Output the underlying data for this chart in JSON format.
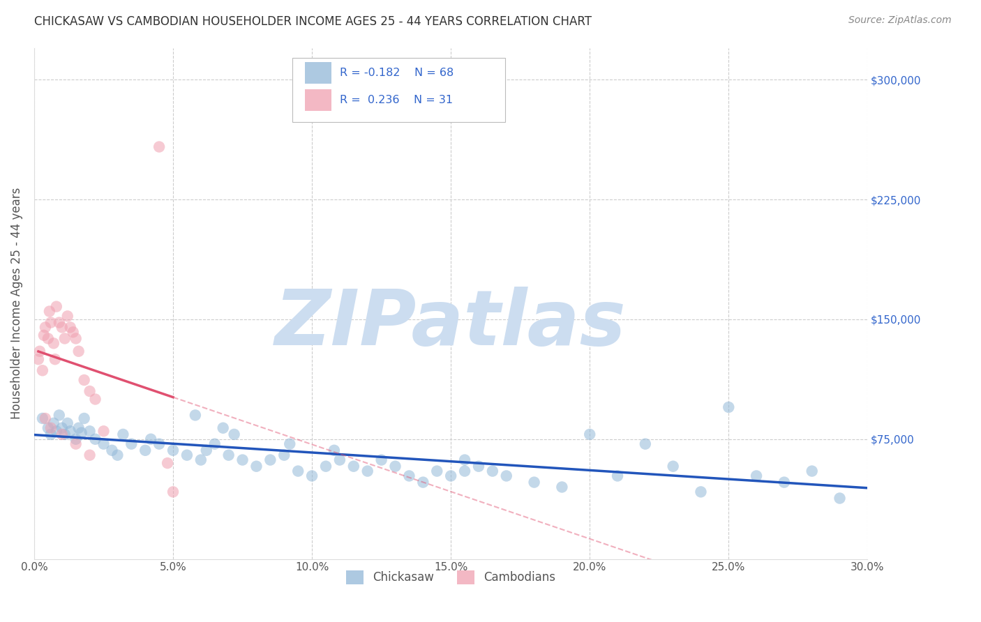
{
  "title": "CHICKASAW VS CAMBODIAN HOUSEHOLDER INCOME AGES 25 - 44 YEARS CORRELATION CHART",
  "source": "Source: ZipAtlas.com",
  "xlabel_vals": [
    0.0,
    5.0,
    10.0,
    15.0,
    20.0,
    25.0,
    30.0
  ],
  "ylabel_vals": [
    75000,
    150000,
    225000,
    300000
  ],
  "ylabel_labels": [
    "$75,000",
    "$150,000",
    "$225,000",
    "$300,000"
  ],
  "xlim": [
    0.0,
    30.0
  ],
  "ylim": [
    0,
    320000
  ],
  "ylabel_label": "Householder Income Ages 25 - 44 years",
  "legend_label1": "Chickasaw",
  "legend_label2": "Cambodians",
  "legend_R1": "-0.182",
  "legend_N1": "68",
  "legend_R2": "0.236",
  "legend_N2": "31",
  "blue_color": "#92b8d8",
  "pink_color": "#f0a0b0",
  "blue_line_color": "#2255bb",
  "pink_line_color": "#e05070",
  "legend_text_color": "#3366cc",
  "watermark": "ZIPatlas",
  "watermark_color": "#ccddf0",
  "blue_x": [
    0.3,
    0.5,
    0.6,
    0.7,
    0.8,
    0.9,
    1.0,
    1.1,
    1.2,
    1.3,
    1.5,
    1.6,
    1.7,
    1.8,
    2.0,
    2.2,
    2.5,
    2.8,
    3.0,
    3.2,
    3.5,
    4.0,
    4.2,
    4.5,
    5.0,
    5.5,
    6.0,
    6.2,
    6.5,
    7.0,
    7.5,
    8.0,
    8.5,
    9.0,
    9.5,
    10.0,
    10.5,
    11.0,
    11.5,
    12.0,
    12.5,
    13.0,
    13.5,
    14.0,
    14.5,
    15.0,
    15.5,
    16.0,
    16.5,
    17.0,
    18.0,
    19.0,
    20.0,
    21.0,
    22.0,
    23.0,
    24.0,
    25.0,
    26.0,
    27.0,
    28.0,
    29.0,
    5.8,
    6.8,
    7.2,
    9.2,
    10.8,
    15.5
  ],
  "blue_y": [
    88000,
    82000,
    78000,
    85000,
    80000,
    90000,
    82000,
    78000,
    85000,
    80000,
    75000,
    82000,
    79000,
    88000,
    80000,
    75000,
    72000,
    68000,
    65000,
    78000,
    72000,
    68000,
    75000,
    72000,
    68000,
    65000,
    62000,
    68000,
    72000,
    65000,
    62000,
    58000,
    62000,
    65000,
    55000,
    52000,
    58000,
    62000,
    58000,
    55000,
    62000,
    58000,
    52000,
    48000,
    55000,
    52000,
    55000,
    58000,
    55000,
    52000,
    48000,
    45000,
    78000,
    52000,
    72000,
    58000,
    42000,
    95000,
    52000,
    48000,
    55000,
    38000,
    90000,
    82000,
    78000,
    72000,
    68000,
    62000
  ],
  "pink_x": [
    0.15,
    0.2,
    0.3,
    0.35,
    0.4,
    0.5,
    0.55,
    0.6,
    0.7,
    0.75,
    0.8,
    0.9,
    1.0,
    1.1,
    1.2,
    1.3,
    1.4,
    1.5,
    1.6,
    1.8,
    2.0,
    2.2,
    2.5,
    0.4,
    0.6,
    1.0,
    1.5,
    2.0,
    5.0,
    4.8,
    4.5
  ],
  "pink_y": [
    125000,
    130000,
    118000,
    140000,
    145000,
    138000,
    155000,
    148000,
    135000,
    125000,
    158000,
    148000,
    145000,
    138000,
    152000,
    145000,
    142000,
    138000,
    130000,
    112000,
    105000,
    100000,
    80000,
    88000,
    82000,
    78000,
    72000,
    65000,
    42000,
    60000,
    258000
  ]
}
